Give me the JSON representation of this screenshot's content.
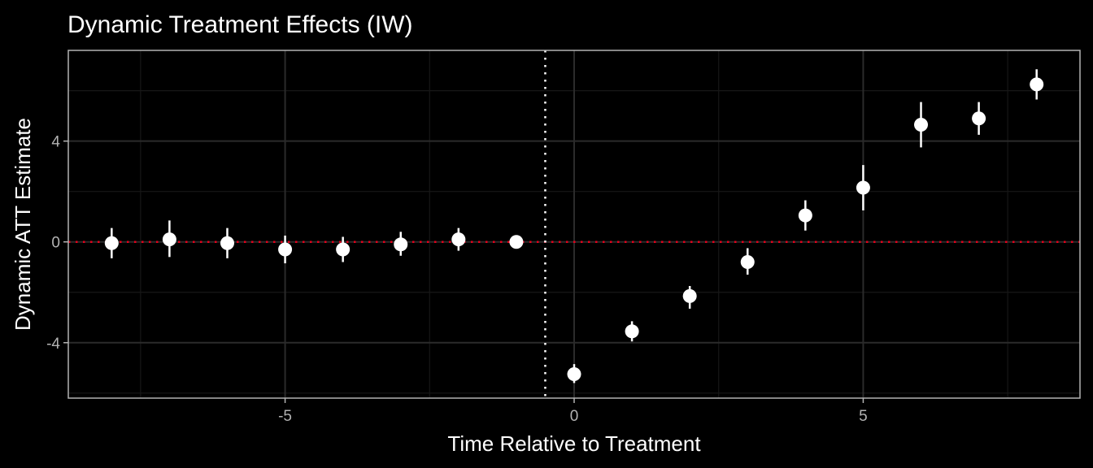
{
  "chart_data": {
    "type": "scatter",
    "title": "Dynamic Treatment Effects (IW)",
    "xlabel": "Time Relative to Treatment",
    "ylabel": "Dynamic ATT Estimate",
    "xlim": [
      -8.75,
      8.75
    ],
    "ylim": [
      -6.2,
      7.6
    ],
    "x_ticks": [
      -5,
      0,
      5
    ],
    "y_ticks": [
      -4,
      0,
      4
    ],
    "x_tick_labels": [
      "-5",
      "0",
      "5"
    ],
    "y_tick_labels": [
      "-4",
      "0",
      "4"
    ],
    "grid": true,
    "reference_lines": {
      "horizontal_zero": {
        "y": 0,
        "style": "dotted",
        "color": "#e3001b"
      },
      "vertical_treatment": {
        "x": -0.5,
        "style": "dotted",
        "color": "#ffffff"
      }
    },
    "series": [
      {
        "points": [
          {
            "x": -8,
            "y": -0.05,
            "lo": -0.65,
            "hi": 0.55
          },
          {
            "x": -7,
            "y": 0.1,
            "lo": -0.6,
            "hi": 0.85
          },
          {
            "x": -6,
            "y": -0.05,
            "lo": -0.65,
            "hi": 0.55
          },
          {
            "x": -5,
            "y": -0.3,
            "lo": -0.85,
            "hi": 0.25
          },
          {
            "x": -4,
            "y": -0.3,
            "lo": -0.8,
            "hi": 0.2
          },
          {
            "x": -3,
            "y": -0.1,
            "lo": -0.55,
            "hi": 0.4
          },
          {
            "x": -2,
            "y": 0.1,
            "lo": -0.35,
            "hi": 0.55
          },
          {
            "x": -1,
            "y": 0.0,
            "lo": 0.0,
            "hi": 0.0
          },
          {
            "x": 0,
            "y": -5.25,
            "lo": -5.6,
            "hi": -4.85
          },
          {
            "x": 1,
            "y": -3.55,
            "lo": -3.95,
            "hi": -3.15
          },
          {
            "x": 2,
            "y": -2.15,
            "lo": -2.65,
            "hi": -1.75
          },
          {
            "x": 3,
            "y": -0.8,
            "lo": -1.3,
            "hi": -0.25
          },
          {
            "x": 4,
            "y": 1.05,
            "lo": 0.45,
            "hi": 1.65
          },
          {
            "x": 5,
            "y": 2.15,
            "lo": 1.25,
            "hi": 3.05
          },
          {
            "x": 6,
            "y": 4.65,
            "lo": 3.75,
            "hi": 5.55
          },
          {
            "x": 7,
            "y": 4.9,
            "lo": 4.25,
            "hi": 5.55
          },
          {
            "x": 8,
            "y": 6.25,
            "lo": 5.65,
            "hi": 6.85
          }
        ]
      }
    ],
    "colors": {
      "background": "#000000",
      "panel_border": "#b3b3b3",
      "grid_major": "#2b2b2b",
      "grid_minor": "#171717",
      "point": "#ffffff",
      "zero_line": "#e3001b",
      "treatment_line": "#ffffff"
    }
  }
}
